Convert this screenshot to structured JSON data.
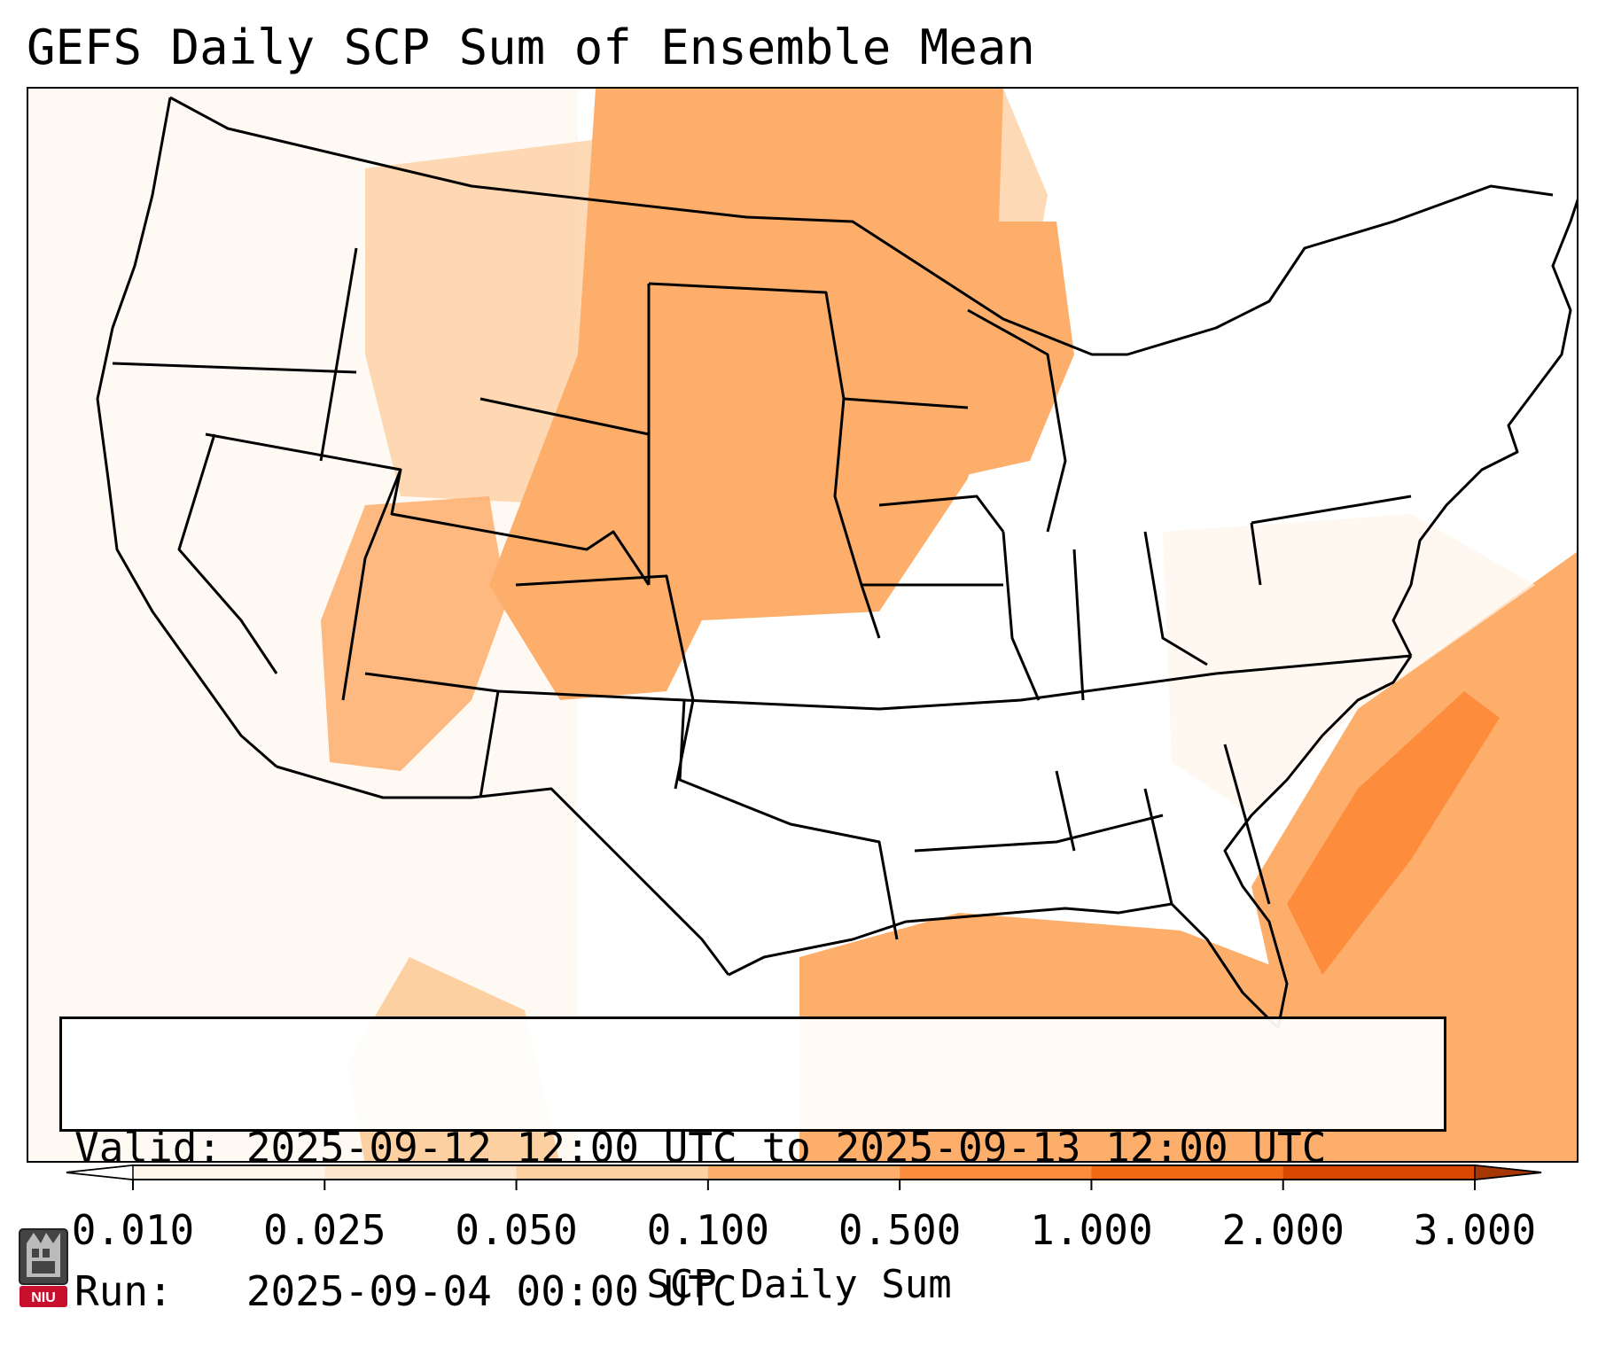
{
  "title": "GEFS Daily SCP Sum of Ensemble Mean",
  "info": {
    "valid_line": "Valid: 2025-09-12 12:00 UTC to 2025-09-13 12:00 UTC",
    "run_line": "Run:   2025-09-04 00:00 UTC"
  },
  "colorbar": {
    "label": "SCP Daily Sum",
    "levels": [
      "0.010",
      "0.025",
      "0.050",
      "0.100",
      "0.500",
      "1.000",
      "2.000",
      "3.000"
    ],
    "colors": [
      "#fff5eb",
      "#fee6ce",
      "#fdd0a2",
      "#fdae6b",
      "#fd8d3c",
      "#f16913",
      "#d94801"
    ],
    "extend": "both"
  },
  "logo": {
    "text": "NIU",
    "description": "university seal"
  },
  "map": {
    "region": "CONUS",
    "fill_colors": {
      "none": "#ffffff",
      "lvl1": "#fff5eb",
      "lvl2": "#fee6ce",
      "lvl3": "#fdd0a2",
      "lvl4": "#fdae6b",
      "lvl5": "#fd8d3c",
      "lvl6": "#f16913"
    }
  }
}
